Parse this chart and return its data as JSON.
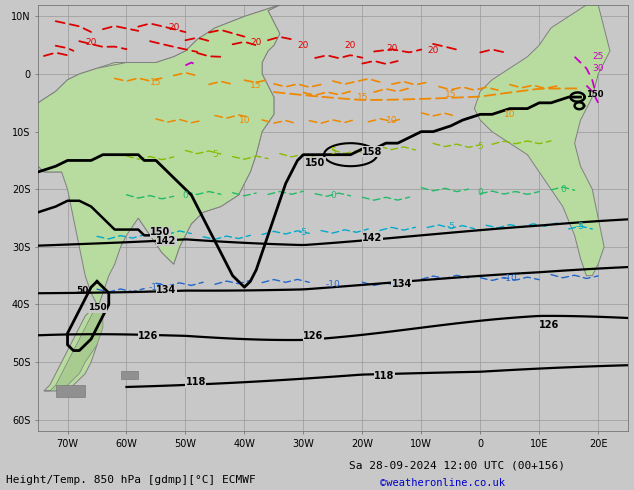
{
  "title_bottom": "Height/Temp. 850 hPa [gdmp][°C] ECMWF",
  "date_str": "Sa 28-09-2024 12:00 UTC (00+156)",
  "credit": "©weatheronline.co.uk",
  "bg_color": "#c8c8c8",
  "sea_color": "#c8c8c8",
  "land_color": "#b8dba0",
  "land_color2": "#a8cb90",
  "grid_color": "#999999",
  "title_fontsize": 8,
  "credit_fontsize": 7.5,
  "xlim": [
    -75,
    25
  ],
  "ylim": [
    -62,
    12
  ]
}
